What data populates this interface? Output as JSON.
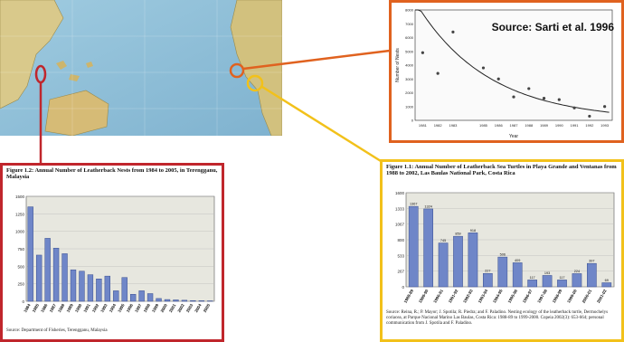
{
  "colors": {
    "red": "#c0262c",
    "orange": "#e0621f",
    "yellow": "#f2c11a",
    "bar": "#6f86c8",
    "bar_edge": "#3a4f8f",
    "ocean": "#8fbfd8",
    "land": "#d8c98a"
  },
  "map": {
    "markers": [
      {
        "name": "red-marker",
        "color": "#c0262c"
      },
      {
        "name": "orange-marker",
        "color": "#e0621f"
      },
      {
        "name": "yellow-marker",
        "color": "#f2c11a"
      }
    ]
  },
  "orange_panel": {
    "source": "Source: Sarti et al. 1996"
  },
  "red_panel": {
    "caption": "Figure 1.2: Annual Number of Leatherback Nests from 1984 to 2005, in Terengganu, Malaysia",
    "footnote": "Source: Department of Fisheries, Terengganu, Malaysia"
  },
  "yellow_panel": {
    "caption": "Figure 1.1: Annual Number of Leatherback Sea Turtles in Playa Grande and Ventanas from 1988 to 2002, Las Baulas National Park, Costa Rica",
    "footnote": "Source: Reina, R.; P. Mayor; J. Spotila; R. Piedra; and F. Paladino. Nesting ecology of the leatherback turtle, Dermochelys coriacea, at Parque Nacional Marino Las Baulas, Costa Rica: 1988-89 to 1999-2000. Copeia 2002(3): 653-664; personal communication from J. Spotila and F. Paladino."
  },
  "chart_data": [
    {
      "type": "bar",
      "panel": "red",
      "categories": [
        "1984",
        "1985",
        "1986",
        "1987",
        "1988",
        "1989",
        "1990",
        "1991",
        "1992",
        "1993",
        "1994",
        "1995",
        "1996",
        "1997",
        "1998",
        "1999",
        "2000",
        "2001",
        "2002",
        "2003",
        "2004",
        "2005"
      ],
      "values": [
        1350,
        660,
        900,
        760,
        680,
        450,
        430,
        380,
        320,
        360,
        150,
        340,
        100,
        150,
        110,
        40,
        25,
        20,
        15,
        10,
        8,
        6
      ],
      "ylim": [
        0,
        1500
      ],
      "title": "",
      "xlabel": "",
      "ylabel": ""
    },
    {
      "type": "scatter",
      "panel": "orange",
      "x": [
        1981,
        1982,
        1983,
        1985,
        1986,
        1987,
        1988,
        1989,
        1990,
        1991,
        1992,
        1993
      ],
      "y": [
        4900,
        3400,
        6400,
        3800,
        3000,
        1700,
        2300,
        1600,
        1500,
        900,
        300,
        1000
      ],
      "trend": "exponential decline",
      "ylim": [
        0,
        8000
      ],
      "xlabel": "Year",
      "ylabel": "Number of Nests"
    },
    {
      "type": "bar",
      "panel": "yellow",
      "categories": [
        "1988-89",
        "1989-90",
        "1990-91",
        "1991-92",
        "1992-93",
        "1993-94",
        "1994-95",
        "1995-96",
        "1996-97",
        "1997-98",
        "1998-99",
        "1999-00",
        "2000-01",
        "2001-02"
      ],
      "values": [
        1367,
        1324,
        745,
        859,
        918,
        227,
        506,
        409,
        117,
        193,
        117,
        224,
        397,
        69
      ],
      "ylim": [
        0,
        1600
      ],
      "title": "",
      "xlabel": "",
      "ylabel": ""
    }
  ]
}
